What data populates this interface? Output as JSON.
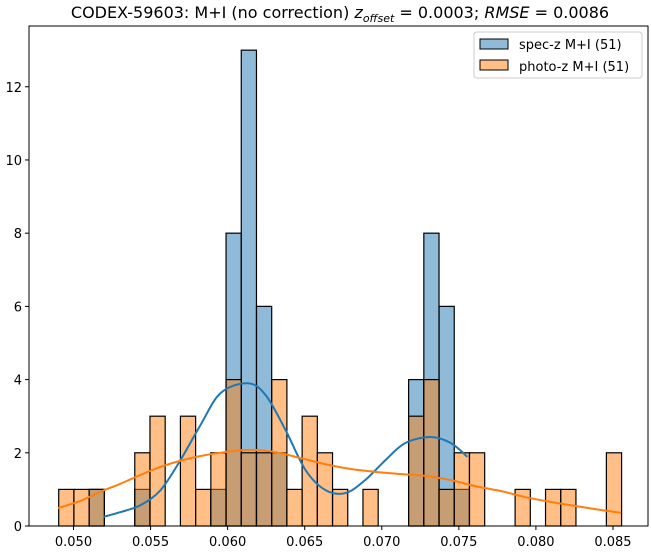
{
  "chart_data": {
    "type": "histogram",
    "title_prefix": "CODEX-59603: M+I (no correction) ",
    "title_z": "z",
    "title_z_sub": "offset",
    "title_eq1": " = 0.0003; ",
    "title_rmse": "RMSE",
    "title_eq2": " = 0.0086",
    "xlabel": "",
    "ylabel": "",
    "xlim": [
      0.047113,
      0.087272
    ],
    "ylim": [
      0,
      13.66
    ],
    "xticks": [
      0.05,
      0.055,
      0.06,
      0.065,
      0.07,
      0.075,
      0.08,
      0.085
    ],
    "xtick_labels": [
      "0.050",
      "0.055",
      "0.060",
      "0.065",
      "0.070",
      "0.075",
      "0.080",
      "0.085"
    ],
    "yticks": [
      0,
      2,
      4,
      6,
      8,
      10,
      12
    ],
    "ytick_labels": [
      "0",
      "2",
      "4",
      "6",
      "8",
      "10",
      "12"
    ],
    "bin_start": 0.04904,
    "bin_width": 0.000987,
    "grid": false,
    "legend_position": "top-right",
    "series": [
      {
        "name": "spec-z M+I (51)",
        "color": "#1f77b4",
        "fill": "#7eaed4",
        "counts": [
          0,
          0,
          1,
          0,
          0,
          1,
          0,
          0,
          0,
          0,
          1,
          8,
          13,
          6,
          2,
          0,
          0,
          0,
          0,
          0,
          0,
          0,
          0,
          4,
          8,
          6,
          1,
          0,
          0,
          0,
          0,
          0,
          0,
          0,
          0,
          0,
          0
        ],
        "kde": [
          [
            0.05195,
            0.25
          ],
          [
            0.05305,
            0.38
          ],
          [
            0.05435,
            0.57
          ],
          [
            0.05565,
            0.98
          ],
          [
            0.05694,
            1.8
          ],
          [
            0.05824,
            2.76
          ],
          [
            0.05954,
            3.63
          ],
          [
            0.06129,
            3.9
          ],
          [
            0.06246,
            3.58
          ],
          [
            0.06376,
            2.62
          ],
          [
            0.06505,
            1.53
          ],
          [
            0.06635,
            0.98
          ],
          [
            0.06765,
            0.9
          ],
          [
            0.06894,
            1.26
          ],
          [
            0.07024,
            1.8
          ],
          [
            0.07154,
            2.27
          ],
          [
            0.07316,
            2.43
          ],
          [
            0.07446,
            2.27
          ],
          [
            0.07556,
            1.89
          ]
        ]
      },
      {
        "name": "photo-z M+I (51)",
        "color": "#ff7f0e",
        "fill": "#ffbf87",
        "counts": [
          1,
          1,
          1,
          0,
          0,
          2,
          3,
          0,
          3,
          1,
          2,
          4,
          2,
          2,
          4,
          1,
          3,
          2,
          1,
          0,
          1,
          0,
          0,
          3,
          4,
          1,
          2,
          2,
          0,
          0,
          1,
          0,
          1,
          1,
          0,
          0,
          2
        ],
        "kde": [
          [
            0.04899,
            0.49
          ],
          [
            0.05042,
            0.68
          ],
          [
            0.05172,
            0.93
          ],
          [
            0.05302,
            1.15
          ],
          [
            0.05432,
            1.39
          ],
          [
            0.05561,
            1.61
          ],
          [
            0.05691,
            1.78
          ],
          [
            0.05821,
            1.91
          ],
          [
            0.05983,
            2.02
          ],
          [
            0.06145,
            2.08
          ],
          [
            0.06307,
            2.02
          ],
          [
            0.0647,
            1.86
          ],
          [
            0.06632,
            1.69
          ],
          [
            0.06794,
            1.56
          ],
          [
            0.06956,
            1.48
          ],
          [
            0.07119,
            1.42
          ],
          [
            0.07281,
            1.37
          ],
          [
            0.07443,
            1.26
          ],
          [
            0.07605,
            1.09
          ],
          [
            0.07768,
            0.96
          ],
          [
            0.0793,
            0.79
          ],
          [
            0.08092,
            0.66
          ],
          [
            0.08254,
            0.55
          ],
          [
            0.08416,
            0.44
          ],
          [
            0.08553,
            0.36
          ]
        ]
      }
    ]
  }
}
